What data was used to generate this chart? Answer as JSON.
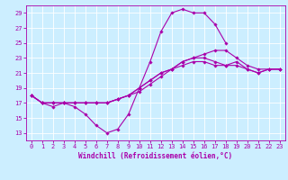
{
  "xlabel": "Windchill (Refroidissement éolien,°C)",
  "bg_color": "#cceeff",
  "line_color": "#aa00aa",
  "grid_color": "#ffffff",
  "xlim": [
    -0.5,
    23.5
  ],
  "ylim": [
    12,
    30
  ],
  "xticks": [
    0,
    1,
    2,
    3,
    4,
    5,
    6,
    7,
    8,
    9,
    10,
    11,
    12,
    13,
    14,
    15,
    16,
    17,
    18,
    19,
    20,
    21,
    22,
    23
  ],
  "yticks": [
    13,
    15,
    17,
    19,
    21,
    23,
    25,
    27,
    29
  ],
  "series": [
    [
      18.0,
      17.0,
      16.5,
      17.0,
      16.5,
      15.5,
      14.0,
      13.0,
      13.5,
      15.5,
      19.0,
      22.5,
      26.5,
      29.0,
      29.5,
      29.0,
      29.0,
      27.5,
      25.0,
      null,
      null,
      null,
      null,
      null
    ],
    [
      18.0,
      17.0,
      17.0,
      17.0,
      17.0,
      17.0,
      17.0,
      17.0,
      17.5,
      18.0,
      19.0,
      20.0,
      21.0,
      21.5,
      22.0,
      22.5,
      22.5,
      22.0,
      22.0,
      22.5,
      21.5,
      21.0,
      21.5,
      21.5
    ],
    [
      18.0,
      17.0,
      17.0,
      17.0,
      17.0,
      17.0,
      17.0,
      17.0,
      17.5,
      18.0,
      18.5,
      19.5,
      20.5,
      21.5,
      22.5,
      23.0,
      23.5,
      24.0,
      24.0,
      23.0,
      22.0,
      21.5,
      21.5,
      21.5
    ],
    [
      18.0,
      17.0,
      17.0,
      17.0,
      17.0,
      17.0,
      17.0,
      17.0,
      17.5,
      18.0,
      19.0,
      20.0,
      21.0,
      21.5,
      22.5,
      23.0,
      23.0,
      22.5,
      22.0,
      22.0,
      21.5,
      21.0,
      21.5,
      21.5
    ]
  ],
  "tick_fontsize": 5.0,
  "xlabel_fontsize": 5.5,
  "marker_size": 1.8,
  "line_width": 0.8
}
